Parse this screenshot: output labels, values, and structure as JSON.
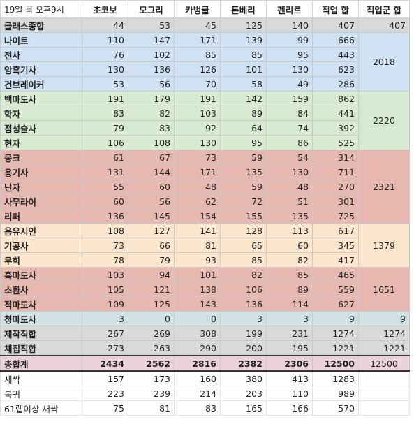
{
  "header": {
    "timestamp": "19일 목 오후9시",
    "cols": [
      "초코보",
      "모그리",
      "카벙클",
      "톤베리",
      "펜리르",
      "직업 합",
      "직업군 합"
    ]
  },
  "rows": [
    {
      "name": "클래스종합",
      "vals": [
        "44",
        "53",
        "45",
        "125",
        "140",
        "407"
      ],
      "group": "407"
    },
    {
      "name": "나이트",
      "vals": [
        "110",
        "147",
        "171",
        "139",
        "99",
        "666"
      ]
    },
    {
      "name": "전사",
      "vals": [
        "76",
        "102",
        "85",
        "85",
        "95",
        "443"
      ]
    },
    {
      "name": "암흑기사",
      "vals": [
        "130",
        "136",
        "126",
        "101",
        "130",
        "623"
      ]
    },
    {
      "name": "건브레이커",
      "vals": [
        "53",
        "56",
        "70",
        "58",
        "49",
        "286"
      ]
    },
    {
      "name": "백마도사",
      "vals": [
        "191",
        "179",
        "191",
        "142",
        "159",
        "862"
      ]
    },
    {
      "name": "학자",
      "vals": [
        "83",
        "82",
        "103",
        "89",
        "84",
        "441"
      ]
    },
    {
      "name": "점성술사",
      "vals": [
        "79",
        "83",
        "92",
        "64",
        "74",
        "392"
      ]
    },
    {
      "name": "현자",
      "vals": [
        "106",
        "108",
        "130",
        "95",
        "86",
        "525"
      ]
    },
    {
      "name": "몽크",
      "vals": [
        "61",
        "67",
        "73",
        "59",
        "54",
        "314"
      ]
    },
    {
      "name": "용기사",
      "vals": [
        "131",
        "144",
        "171",
        "135",
        "130",
        "711"
      ]
    },
    {
      "name": "닌자",
      "vals": [
        "55",
        "60",
        "48",
        "59",
        "48",
        "270"
      ]
    },
    {
      "name": "사무라이",
      "vals": [
        "60",
        "56",
        "62",
        "72",
        "51",
        "301"
      ]
    },
    {
      "name": "리퍼",
      "vals": [
        "136",
        "145",
        "154",
        "155",
        "135",
        "725"
      ]
    },
    {
      "name": "음유시인",
      "vals": [
        "108",
        "127",
        "141",
        "128",
        "113",
        "617"
      ]
    },
    {
      "name": "기공사",
      "vals": [
        "73",
        "66",
        "81",
        "65",
        "60",
        "345"
      ]
    },
    {
      "name": "무희",
      "vals": [
        "78",
        "79",
        "93",
        "85",
        "82",
        "417"
      ]
    },
    {
      "name": "흑마도사",
      "vals": [
        "103",
        "94",
        "101",
        "82",
        "85",
        "465"
      ]
    },
    {
      "name": "소환사",
      "vals": [
        "105",
        "121",
        "138",
        "106",
        "89",
        "559"
      ]
    },
    {
      "name": "적마도사",
      "vals": [
        "109",
        "125",
        "143",
        "136",
        "114",
        "627"
      ]
    },
    {
      "name": "청마도사",
      "vals": [
        "3",
        "0",
        "0",
        "3",
        "3",
        "9"
      ],
      "group": "9"
    },
    {
      "name": "제작직합",
      "vals": [
        "267",
        "269",
        "308",
        "199",
        "231",
        "1274"
      ],
      "group": "1274"
    },
    {
      "name": "채집직합",
      "vals": [
        "273",
        "263",
        "290",
        "200",
        "195",
        "1221"
      ],
      "group": "1221"
    },
    {
      "name": "총합계",
      "vals": [
        "2434",
        "2562",
        "2816",
        "2382",
        "2306",
        "12500"
      ],
      "group": "12500"
    },
    {
      "name": "새싹",
      "vals": [
        "157",
        "173",
        "160",
        "380",
        "413",
        "1283"
      ],
      "group": ""
    },
    {
      "name": "복귀",
      "vals": [
        "223",
        "239",
        "214",
        "203",
        "110",
        "989"
      ],
      "group": ""
    },
    {
      "name": "61렙이상 새싹",
      "vals": [
        "75",
        "81",
        "83",
        "165",
        "166",
        "570"
      ],
      "group": ""
    }
  ],
  "groups": {
    "tank": "2018",
    "healer": "2220",
    "melee": "2321",
    "ranged": "1379",
    "caster": "1651"
  }
}
